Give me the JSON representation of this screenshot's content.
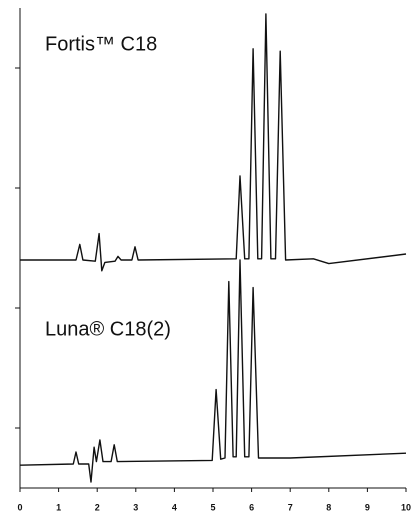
{
  "chart_data": {
    "type": "line",
    "xlim": [
      0,
      10
    ],
    "xticks": [
      0,
      1,
      2,
      3,
      4,
      5,
      6,
      7,
      8,
      9,
      10
    ],
    "ylim": [
      -0.1,
      3.9
    ],
    "yticks": [
      0.4,
      1.4,
      2.4,
      3.4
    ],
    "series": [
      {
        "name": "Fortis™ C18",
        "color": "#111111",
        "x": [
          0,
          1.45,
          1.55,
          1.63,
          1.95,
          2.05,
          2.12,
          2.2,
          2.46,
          2.54,
          2.62,
          2.9,
          2.98,
          3.06,
          5.6,
          5.7,
          5.82,
          5.93,
          6.04,
          6.16,
          6.26,
          6.37,
          6.5,
          6.62,
          6.74,
          6.88,
          7.6,
          8.0,
          10
        ],
        "values": [
          1.8,
          1.8,
          1.93,
          1.8,
          1.79,
          2.02,
          1.71,
          1.78,
          1.79,
          1.83,
          1.8,
          1.8,
          1.91,
          1.8,
          1.81,
          2.5,
          1.81,
          1.81,
          3.56,
          1.81,
          1.81,
          3.85,
          1.81,
          1.81,
          3.54,
          1.8,
          1.81,
          1.77,
          1.85
        ]
      },
      {
        "name": "Luna® C18(2)",
        "color": "#111111",
        "x": [
          0,
          1.38,
          1.45,
          1.52,
          1.78,
          1.84,
          1.92,
          1.98,
          2.07,
          2.15,
          2.36,
          2.44,
          2.52,
          4.98,
          5.08,
          5.2,
          5.31,
          5.41,
          5.52,
          5.6,
          5.7,
          5.82,
          5.93,
          6.04,
          6.18,
          7,
          10
        ],
        "values": [
          0.09,
          0.1,
          0.2,
          0.1,
          0.1,
          -0.05,
          0.24,
          0.12,
          0.3,
          0.12,
          0.12,
          0.26,
          0.12,
          0.13,
          0.72,
          0.14,
          0.15,
          1.62,
          0.16,
          0.16,
          1.8,
          0.16,
          0.16,
          1.57,
          0.15,
          0.15,
          0.19
        ]
      }
    ]
  }
}
